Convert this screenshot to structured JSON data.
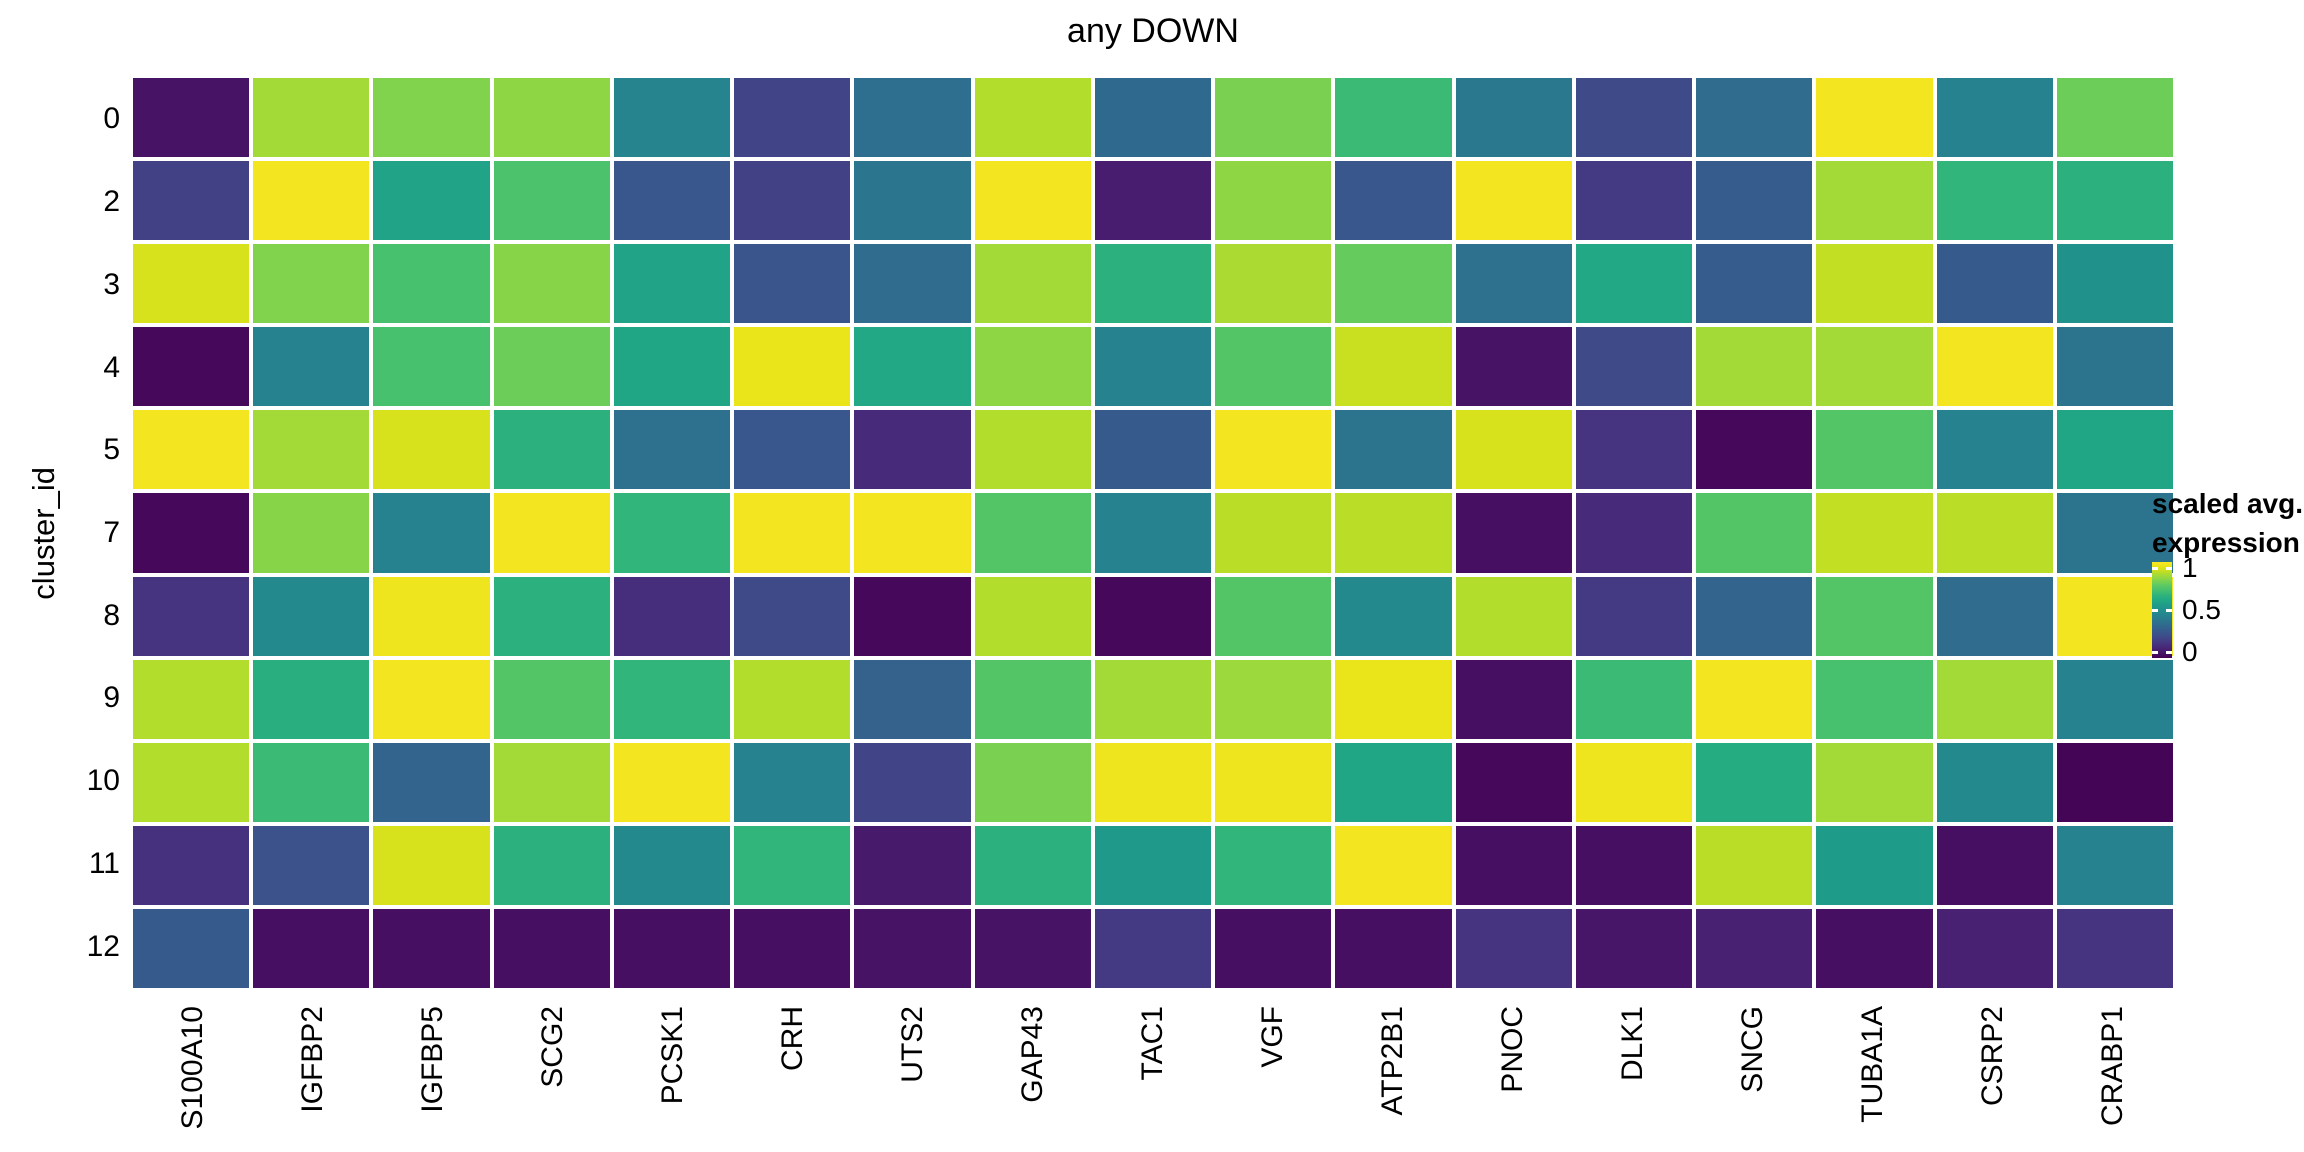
{
  "chart_data": {
    "type": "heatmap",
    "title": "any DOWN",
    "x_axis": {
      "label": "",
      "categories": [
        "S100A10",
        "IGFBP2",
        "IGFBP5",
        "SCG2",
        "PCSK1",
        "CRH",
        "UTS2",
        "GAP43",
        "TAC1",
        "VGF",
        "ATP2B1",
        "PNOC",
        "DLK1",
        "SNCG",
        "TUBA1A",
        "CSRP2",
        "CRABP1"
      ]
    },
    "y_axis": {
      "label": "cluster_id",
      "categories": [
        "0",
        "2",
        "3",
        "4",
        "5",
        "7",
        "8",
        "9",
        "10",
        "11",
        "12"
      ]
    },
    "legend": {
      "title_line1": "scaled avg.",
      "title_line2": "expression",
      "ticks": [
        {
          "label": "1",
          "value": 1
        },
        {
          "label": "0.5",
          "value": 0.5
        },
        {
          "label": "0",
          "value": 0
        }
      ]
    },
    "value_range": [
      0,
      1
    ],
    "values": [
      [
        0.05,
        0.86,
        0.81,
        0.83,
        0.45,
        0.2,
        0.36,
        0.88,
        0.34,
        0.8,
        0.68,
        0.4,
        0.22,
        0.35,
        0.98,
        0.44,
        0.78
      ],
      [
        0.19,
        0.98,
        0.58,
        0.72,
        0.27,
        0.19,
        0.39,
        0.98,
        0.08,
        0.83,
        0.27,
        0.98,
        0.17,
        0.29,
        0.86,
        0.66,
        0.64
      ],
      [
        0.93,
        0.81,
        0.71,
        0.82,
        0.58,
        0.26,
        0.35,
        0.86,
        0.64,
        0.87,
        0.77,
        0.37,
        0.6,
        0.29,
        0.9,
        0.28,
        0.5
      ],
      [
        0.02,
        0.44,
        0.71,
        0.78,
        0.59,
        0.96,
        0.6,
        0.83,
        0.44,
        0.74,
        0.91,
        0.05,
        0.22,
        0.86,
        0.86,
        0.98,
        0.38
      ],
      [
        0.98,
        0.86,
        0.93,
        0.64,
        0.37,
        0.27,
        0.12,
        0.88,
        0.28,
        0.98,
        0.38,
        0.93,
        0.15,
        0.02,
        0.74,
        0.44,
        0.59
      ],
      [
        0.02,
        0.82,
        0.44,
        0.98,
        0.66,
        0.98,
        0.98,
        0.74,
        0.44,
        0.89,
        0.89,
        0.04,
        0.12,
        0.74,
        0.9,
        0.89,
        0.38
      ],
      [
        0.15,
        0.47,
        0.97,
        0.64,
        0.13,
        0.22,
        0.02,
        0.88,
        0.02,
        0.74,
        0.47,
        0.88,
        0.17,
        0.32,
        0.74,
        0.35,
        0.98
      ],
      [
        0.88,
        0.63,
        0.98,
        0.74,
        0.66,
        0.88,
        0.31,
        0.74,
        0.86,
        0.85,
        0.96,
        0.04,
        0.68,
        0.98,
        0.71,
        0.86,
        0.44
      ],
      [
        0.88,
        0.68,
        0.32,
        0.86,
        0.98,
        0.44,
        0.2,
        0.8,
        0.97,
        0.97,
        0.59,
        0.02,
        0.97,
        0.62,
        0.86,
        0.47,
        0.01
      ],
      [
        0.14,
        0.25,
        0.93,
        0.64,
        0.47,
        0.66,
        0.07,
        0.64,
        0.54,
        0.66,
        0.98,
        0.04,
        0.04,
        0.89,
        0.55,
        0.04,
        0.44
      ],
      [
        0.28,
        0.04,
        0.04,
        0.04,
        0.04,
        0.04,
        0.05,
        0.05,
        0.17,
        0.04,
        0.04,
        0.15,
        0.06,
        0.09,
        0.04,
        0.09,
        0.15
      ]
    ],
    "colormap": {
      "name": "viridis",
      "stops": [
        {
          "v": 0.0,
          "color": "#440154"
        },
        {
          "v": 0.05,
          "color": "#471365"
        },
        {
          "v": 0.1,
          "color": "#482475"
        },
        {
          "v": 0.15,
          "color": "#463480"
        },
        {
          "v": 0.2,
          "color": "#414487"
        },
        {
          "v": 0.25,
          "color": "#3b528b"
        },
        {
          "v": 0.3,
          "color": "#355f8d"
        },
        {
          "v": 0.35,
          "color": "#2f6c8e"
        },
        {
          "v": 0.4,
          "color": "#2a788e"
        },
        {
          "v": 0.45,
          "color": "#25848e"
        },
        {
          "v": 0.5,
          "color": "#21918c"
        },
        {
          "v": 0.55,
          "color": "#1e9c89"
        },
        {
          "v": 0.6,
          "color": "#22a884"
        },
        {
          "v": 0.65,
          "color": "#2db27d"
        },
        {
          "v": 0.7,
          "color": "#44bf70"
        },
        {
          "v": 0.75,
          "color": "#58c765"
        },
        {
          "v": 0.8,
          "color": "#7ad151"
        },
        {
          "v": 0.85,
          "color": "#9bd93c"
        },
        {
          "v": 0.9,
          "color": "#c2df23"
        },
        {
          "v": 0.95,
          "color": "#e5e419"
        },
        {
          "v": 1.0,
          "color": "#fde725"
        }
      ]
    },
    "grid_line_color": "#ffffff",
    "text_color": "#000000",
    "background_color": "#ffffff"
  }
}
